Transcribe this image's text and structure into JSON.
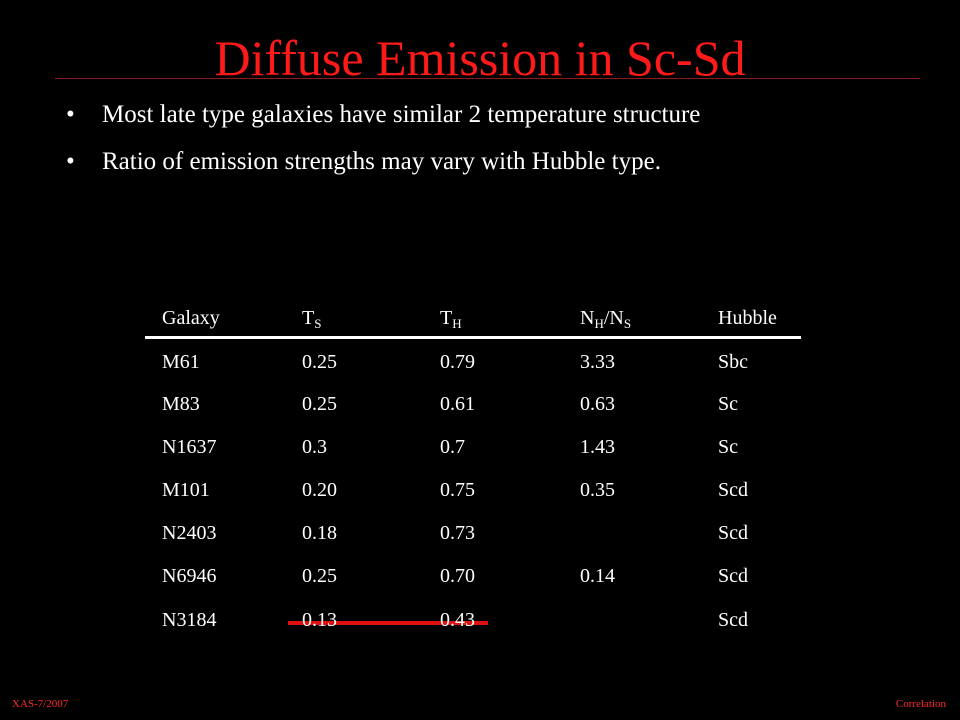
{
  "title": "Diffuse Emission in Sc-Sd",
  "bullets": [
    "Most late type galaxies have similar 2 temperature structure",
    "Ratio of emission strengths may vary with Hubble type."
  ],
  "table": {
    "header": [
      [
        {
          "text": "Galaxy"
        }
      ],
      [
        {
          "text": "T"
        },
        {
          "text": "S",
          "sub": true
        }
      ],
      [
        {
          "text": "T"
        },
        {
          "text": "H",
          "sub": true
        }
      ],
      [
        {
          "text": "N"
        },
        {
          "text": "H",
          "sub": true
        },
        {
          "text": "/N"
        },
        {
          "text": "S",
          "sub": true
        }
      ],
      [
        {
          "text": "Hubble"
        }
      ]
    ],
    "rows": [
      [
        "M61",
        "0.25",
        "0.79",
        "3.33",
        "Sbc"
      ],
      [
        "M83",
        "0.25",
        "0.61",
        "0.63",
        "Sc"
      ],
      [
        "N1637",
        "0.3",
        "0.7",
        "1.43",
        "Sc"
      ],
      [
        "M101",
        "0.20",
        "0.75",
        "0.35",
        "Scd"
      ],
      [
        "N2403",
        "0.18",
        "0.73",
        null,
        "Scd"
      ],
      [
        "N6946",
        "0.25",
        "0.70",
        "0.14",
        "Scd"
      ],
      [
        "N3184",
        "0.13",
        "0.43",
        null,
        "Scd"
      ]
    ]
  },
  "footer": {
    "left": "XAS-7/2007",
    "right": "Correlation"
  }
}
